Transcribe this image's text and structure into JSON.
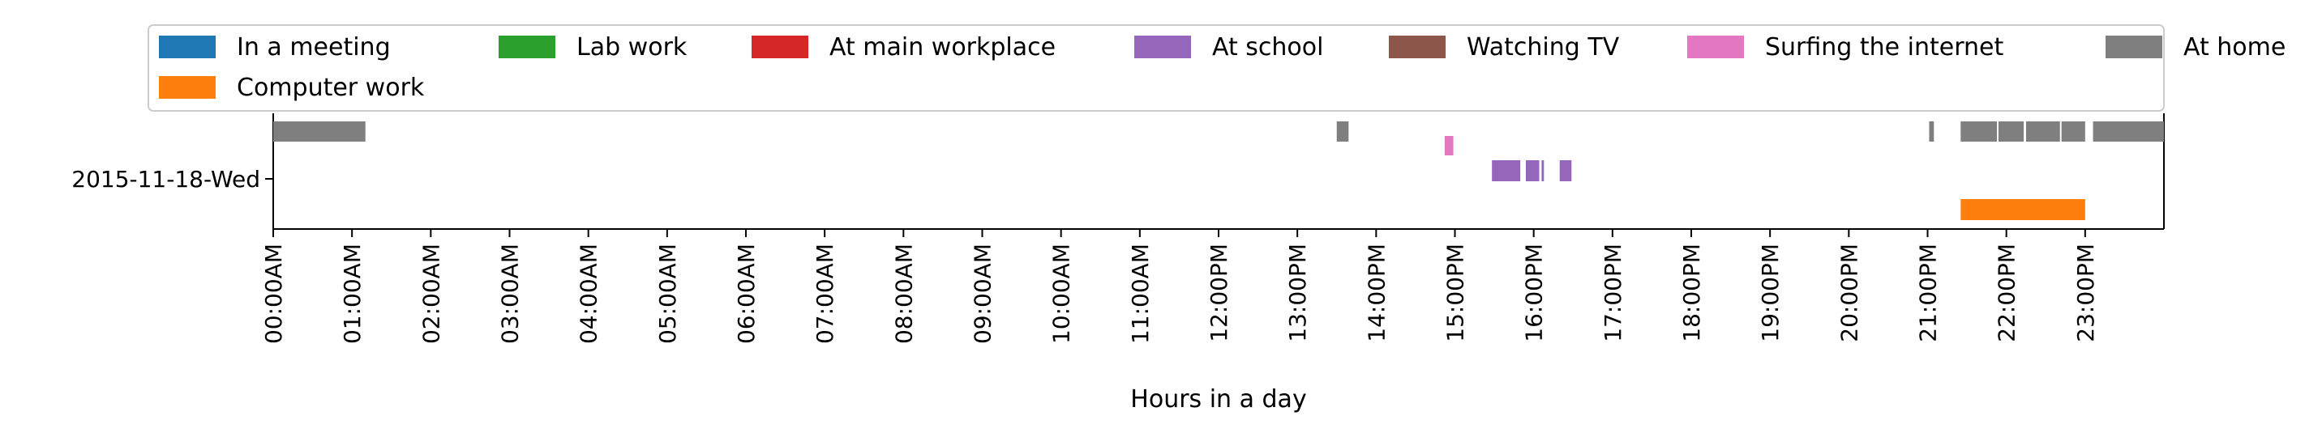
{
  "chart_data": {
    "type": "timeline",
    "title": "",
    "xlabel": "Hours in a day",
    "ylabel": "",
    "xlim": [
      0,
      24
    ],
    "row_label": "2015-11-18-Wed",
    "x_ticks": [
      {
        "hour": 0,
        "label": "00:00AM"
      },
      {
        "hour": 1,
        "label": "01:00AM"
      },
      {
        "hour": 2,
        "label": "02:00AM"
      },
      {
        "hour": 3,
        "label": "03:00AM"
      },
      {
        "hour": 4,
        "label": "04:00AM"
      },
      {
        "hour": 5,
        "label": "05:00AM"
      },
      {
        "hour": 6,
        "label": "06:00AM"
      },
      {
        "hour": 7,
        "label": "07:00AM"
      },
      {
        "hour": 8,
        "label": "08:00AM"
      },
      {
        "hour": 9,
        "label": "09:00AM"
      },
      {
        "hour": 10,
        "label": "10:00AM"
      },
      {
        "hour": 11,
        "label": "11:00AM"
      },
      {
        "hour": 12,
        "label": "12:00PM"
      },
      {
        "hour": 13,
        "label": "13:00PM"
      },
      {
        "hour": 14,
        "label": "14:00PM"
      },
      {
        "hour": 15,
        "label": "15:00PM"
      },
      {
        "hour": 16,
        "label": "16:00PM"
      },
      {
        "hour": 17,
        "label": "17:00PM"
      },
      {
        "hour": 18,
        "label": "18:00PM"
      },
      {
        "hour": 19,
        "label": "19:00PM"
      },
      {
        "hour": 20,
        "label": "20:00PM"
      },
      {
        "hour": 21,
        "label": "21:00PM"
      },
      {
        "hour": 22,
        "label": "22:00PM"
      },
      {
        "hour": 23,
        "label": "23:00PM"
      }
    ],
    "legend_position": "top",
    "series": [
      {
        "name": "In a meeting",
        "color": "#1f77b4",
        "segments": []
      },
      {
        "name": "Computer work",
        "color": "#ff7f0e",
        "segments": [
          [
            21.42,
            23.0
          ]
        ]
      },
      {
        "name": "Lab work",
        "color": "#2ca02c",
        "segments": []
      },
      {
        "name": "At main workplace",
        "color": "#d62728",
        "segments": []
      },
      {
        "name": "At school",
        "color": "#9467bd",
        "segments": [
          [
            15.47,
            15.83
          ],
          [
            15.9,
            16.07
          ],
          [
            16.1,
            16.13
          ],
          [
            16.33,
            16.48
          ]
        ]
      },
      {
        "name": "Watching TV",
        "color": "#8c564b",
        "segments": []
      },
      {
        "name": "Surfing the internet",
        "color": "#e377c2",
        "segments": [
          [
            14.87,
            14.98
          ]
        ]
      },
      {
        "name": "At home",
        "color": "#7f7f7f",
        "segments": [
          [
            0.0,
            1.17
          ],
          [
            13.5,
            13.65
          ],
          [
            21.02,
            21.08
          ],
          [
            21.42,
            21.88
          ],
          [
            21.9,
            22.22
          ],
          [
            22.25,
            22.68
          ],
          [
            22.7,
            23.0
          ],
          [
            23.1,
            24.0
          ]
        ]
      }
    ],
    "legend_order": [
      0,
      2,
      3,
      4,
      5,
      6,
      7,
      1
    ]
  }
}
